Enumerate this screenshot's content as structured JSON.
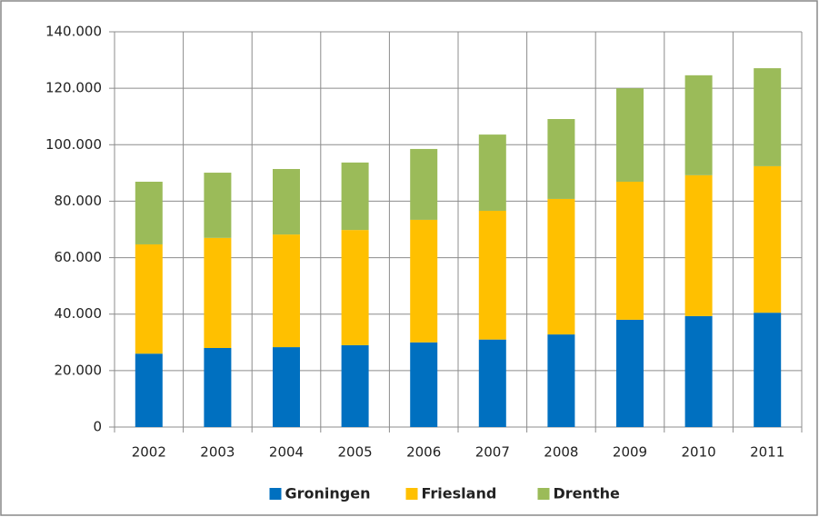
{
  "chart_data": {
    "type": "stacked_bar",
    "categories": [
      "2002",
      "2003",
      "2004",
      "2005",
      "2006",
      "2007",
      "2008",
      "2009",
      "2010",
      "2011"
    ],
    "series": [
      {
        "name": "Groningen",
        "color": "#0070c0",
        "values": [
          26000,
          28000,
          28300,
          29000,
          30000,
          31000,
          32800,
          38000,
          39300,
          40500
        ]
      },
      {
        "name": "Friesland",
        "color": "#ffc000",
        "values": [
          38700,
          39000,
          39900,
          40800,
          43400,
          45600,
          48000,
          48900,
          49900,
          51900
        ]
      },
      {
        "name": "Drenthe",
        "color": "#9bbb59",
        "values": [
          22200,
          23100,
          23200,
          23900,
          25100,
          27000,
          28300,
          33100,
          35400,
          34700
        ]
      }
    ],
    "ylim": [
      0,
      140000
    ],
    "yticks": [
      0,
      {
        "value": 20000,
        "label": "20.000"
      },
      {
        "value": 40000,
        "label": "40.000"
      },
      {
        "value": 60000,
        "label": "60.000"
      },
      {
        "value": 80000,
        "label": "80.000"
      },
      {
        "value": 100000,
        "label": "100.000"
      },
      {
        "value": 120000,
        "label": "120.000"
      },
      {
        "value": 140000,
        "label": "140.000"
      }
    ],
    "grid": true
  }
}
